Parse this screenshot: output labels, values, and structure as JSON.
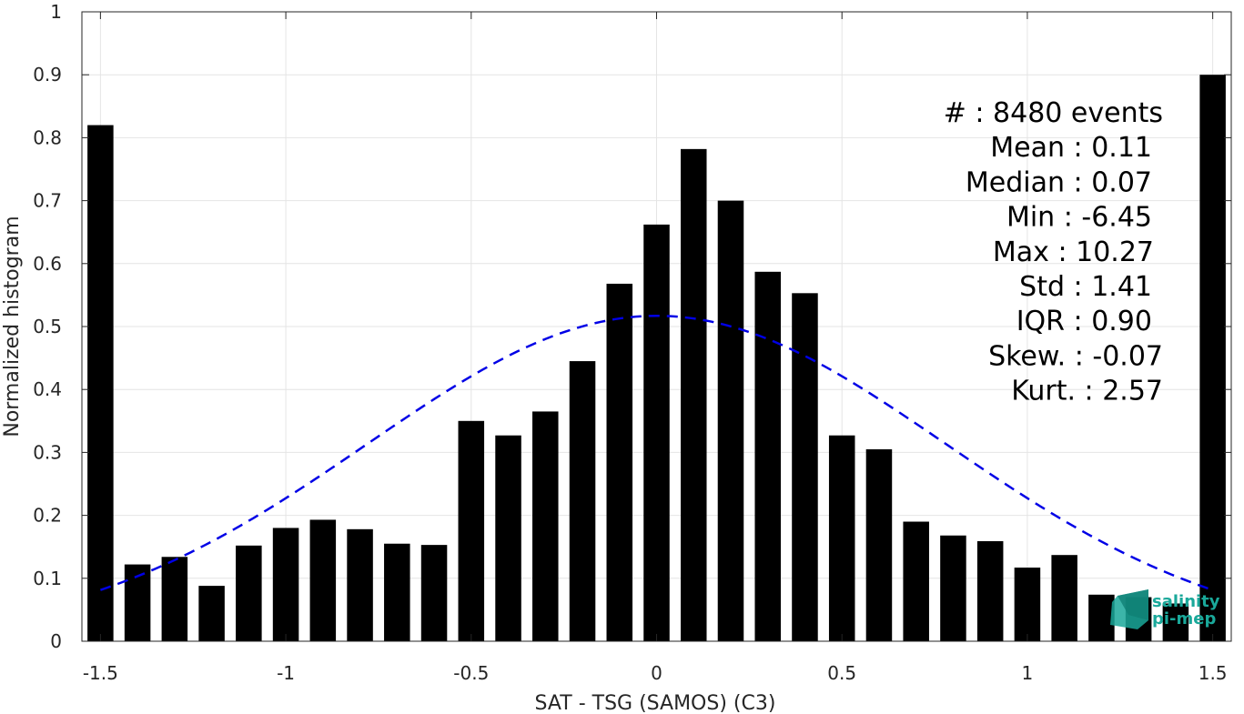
{
  "chart_data": {
    "type": "bar",
    "xlabel": "SAT - TSG (SAMOS) (C3)",
    "ylabel": "Normalized histogram",
    "xlim": [
      -1.55,
      1.55
    ],
    "ylim": [
      0,
      1
    ],
    "grid": true,
    "x_ticks": [
      -1.5,
      -1,
      -0.5,
      0,
      0.5,
      1,
      1.5
    ],
    "x_tick_labels": [
      "-1.5",
      "-1",
      "-0.5",
      "0",
      "0.5",
      "1",
      "1.5"
    ],
    "y_ticks": [
      0,
      0.1,
      0.2,
      0.3,
      0.4,
      0.5,
      0.6,
      0.7,
      0.8,
      0.9,
      1
    ],
    "y_tick_labels": [
      "0",
      "0.1",
      "0.2",
      "0.3",
      "0.4",
      "0.5",
      "0.6",
      "0.7",
      "0.8",
      "0.9",
      "1"
    ],
    "bar_color": "#000000",
    "bars": {
      "x": [
        -1.5,
        -1.4,
        -1.3,
        -1.2,
        -1.1,
        -1.0,
        -0.9,
        -0.8,
        -0.7,
        -0.6,
        -0.5,
        -0.4,
        -0.3,
        -0.2,
        -0.1,
        0.0,
        0.1,
        0.2,
        0.3,
        0.4,
        0.5,
        0.6,
        0.7,
        0.8,
        0.9,
        1.0,
        1.1,
        1.2,
        1.3,
        1.4,
        1.5
      ],
      "values": [
        0.82,
        0.122,
        0.134,
        0.088,
        0.152,
        0.18,
        0.193,
        0.178,
        0.155,
        0.153,
        0.35,
        0.327,
        0.365,
        0.445,
        0.568,
        0.662,
        0.782,
        0.7,
        0.587,
        0.553,
        0.327,
        0.305,
        0.19,
        0.168,
        0.159,
        0.117,
        0.137,
        0.074,
        0.07,
        0.06,
        0.9
      ]
    },
    "fit_curve": {
      "type": "normal",
      "style": "dashed",
      "color": "#0000e6",
      "mean": 0.0,
      "peak": 0.517,
      "sigma": 0.78,
      "x_range": [
        -1.5,
        1.5
      ]
    },
    "stats": [
      "#  : 8480 events",
      "Mean : 0.11",
      "Median : 0.07",
      "Min : -6.45",
      "Max : 10.27",
      "Std : 1.41",
      "IQR : 0.90",
      "Skew. : -0.07",
      "Kurt. : 2.57"
    ],
    "legend_placement": "top-right"
  },
  "logo": {
    "line1": "salinity",
    "line2": "pi-mep",
    "color": "#1aa89a"
  }
}
